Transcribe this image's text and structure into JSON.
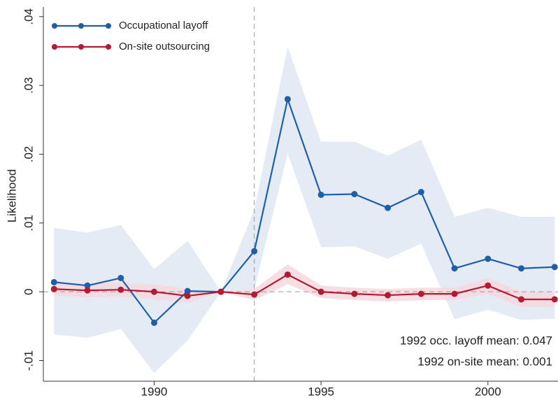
{
  "chart_data": {
    "type": "line",
    "y_label": "Likelihood",
    "x": [
      1987,
      1988,
      1989,
      1990,
      1991,
      1992,
      1993,
      1994,
      1995,
      1996,
      1997,
      1998,
      1999,
      2000,
      2001,
      2002
    ],
    "series": [
      {
        "name": "Occupational layoff",
        "color": "#1f5fa8",
        "band_color": "#dfe7f2",
        "values": [
          0.0014,
          0.0009,
          0.002,
          -0.0045,
          0.0001,
          0,
          0.0059,
          0.028,
          0.0141,
          0.0142,
          0.0122,
          0.0145,
          0.0034,
          0.0048,
          0.0034,
          0.0036
        ],
        "lower": [
          -0.0062,
          -0.0067,
          -0.0054,
          -0.0118,
          -0.0071,
          0,
          0.0003,
          0.0201,
          0.0065,
          0.0066,
          0.0048,
          0.007,
          -0.004,
          -0.0026,
          -0.0041,
          -0.0039
        ],
        "upper": [
          0.0093,
          0.0086,
          0.0097,
          0.0033,
          0.0074,
          0,
          0.0119,
          0.0356,
          0.0218,
          0.0218,
          0.0198,
          0.0221,
          0.0109,
          0.0122,
          0.0109,
          0.0109
        ]
      },
      {
        "name": "On-site outsourcing",
        "color": "#b31b34",
        "band_color": "#f4d8de",
        "values": [
          0.0004,
          0.0002,
          0.0003,
          0,
          -0.0006,
          0,
          -0.0004,
          0.0025,
          0,
          -0.0003,
          -0.0005,
          -0.0003,
          -0.0003,
          0.0009,
          -0.0011,
          -0.0011
        ],
        "lower": [
          -0.0006,
          -0.0008,
          -0.0007,
          -0.0011,
          -0.0016,
          0,
          -0.0012,
          0.0011,
          -0.0009,
          -0.0012,
          -0.0014,
          -0.0012,
          -0.0012,
          -0.0003,
          -0.0022,
          -0.0022
        ],
        "upper": [
          0.0014,
          0.0012,
          0.0013,
          0.0011,
          0.0004,
          0,
          0.0004,
          0.004,
          0.0009,
          0.0006,
          0.0004,
          0.0006,
          0.0006,
          0.002,
          0,
          0
        ]
      }
    ],
    "xlim": [
      1986.68,
      2002.1
    ],
    "xticks": [
      1990,
      1995,
      2000
    ],
    "ylim": [
      -0.013,
      0.0414
    ],
    "yticks": [
      {
        "value": -0.01,
        "label": "-.01"
      },
      0,
      {
        "value": 0.01,
        "label": ".01"
      },
      {
        "value": 0.02,
        "label": ".02"
      },
      {
        "value": 0.03,
        "label": ".03"
      },
      {
        "value": 0.04,
        "label": ".04"
      }
    ],
    "vline": 1993,
    "hline": 0,
    "legend": "top-left",
    "annotations": [
      "1992 occ. layoff mean: 0.047",
      "1992 on-site mean: 0.001"
    ]
  }
}
